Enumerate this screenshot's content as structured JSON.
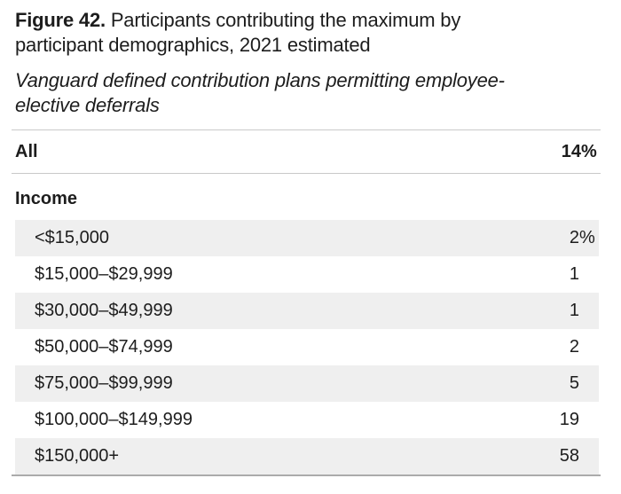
{
  "figure": {
    "label": "Figure 42.",
    "title": " Participants contributing the maximum by participant demographics, 2021 estimated",
    "subtitle": "Vanguard defined contribution plans permitting employee-elective deferrals"
  },
  "summary_row": {
    "label": "All",
    "value": "14",
    "unit": "%"
  },
  "section": {
    "header": "Income"
  },
  "rows": [
    {
      "label": "<$15,000",
      "value": "2",
      "unit": "%"
    },
    {
      "label": "$15,000–$29,999",
      "value": "1",
      "unit": ""
    },
    {
      "label": "$30,000–$49,999",
      "value": "1",
      "unit": ""
    },
    {
      "label": "$50,000–$74,999",
      "value": "2",
      "unit": ""
    },
    {
      "label": "$75,000–$99,999",
      "value": "5",
      "unit": ""
    },
    {
      "label": "$100,000–$149,999",
      "value": "19",
      "unit": ""
    },
    {
      "label": "$150,000+",
      "value": "58",
      "unit": ""
    }
  ],
  "colors": {
    "text": "#1d1d1d",
    "zebra_row_background": "#efefef",
    "light_rule": "#c9c9c9",
    "dark_rule": "#ababab"
  },
  "chart_data": {
    "type": "table",
    "title": "Figure 42. Participants contributing the maximum by participant demographics, 2021 estimated",
    "subtitle": "Vanguard defined contribution plans permitting employee-elective deferrals",
    "columns": [
      "demographic",
      "percent_contributing_maximum"
    ],
    "rows": [
      [
        "All",
        14
      ],
      [
        "<$15,000",
        2
      ],
      [
        "$15,000–$29,999",
        1
      ],
      [
        "$30,000–$49,999",
        1
      ],
      [
        "$50,000–$74,999",
        2
      ],
      [
        "$75,000–$99,999",
        5
      ],
      [
        "$100,000–$149,999",
        19
      ],
      [
        "$150,000+",
        58
      ]
    ],
    "section": "Income",
    "units": "%"
  }
}
